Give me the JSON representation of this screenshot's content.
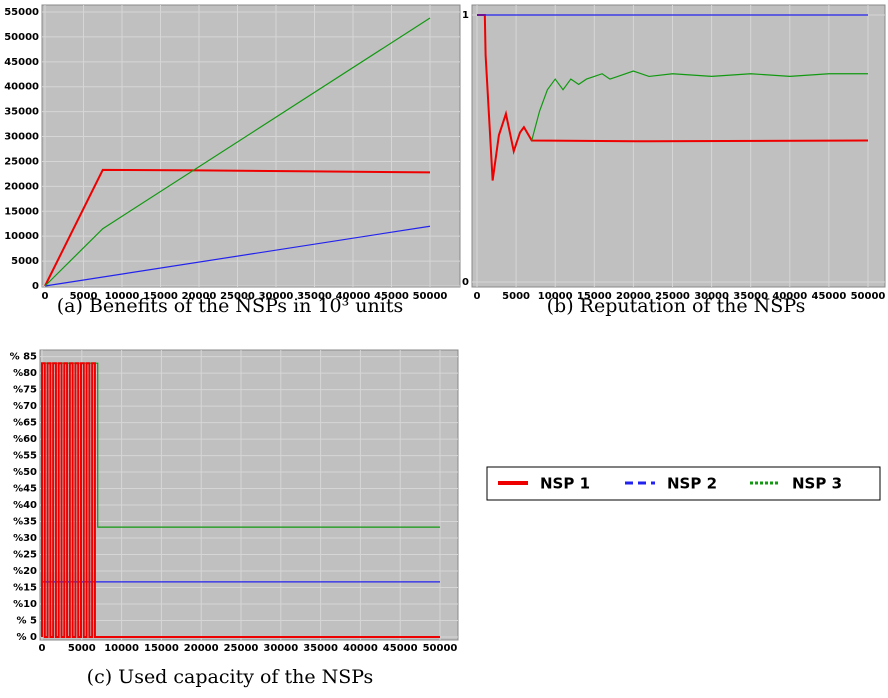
{
  "chart_data": [
    {
      "type": "line",
      "caption": "(a) Benefits of the NSPs in 10³ units",
      "xlim": [
        0,
        50000
      ],
      "xticks": [
        0,
        5000,
        10000,
        15000,
        20000,
        25000,
        30000,
        35000,
        40000,
        45000,
        50000
      ],
      "ylim": [
        0,
        55000
      ],
      "yticks": [
        0,
        5000,
        10000,
        15000,
        20000,
        25000,
        30000,
        35000,
        40000,
        45000,
        50000,
        55000
      ],
      "grid": true,
      "series": [
        {
          "color": "#ee0000",
          "x": [
            0,
            7500,
            20000,
            35000,
            50000
          ],
          "values": [
            0,
            23300,
            23200,
            23000,
            22800
          ]
        },
        {
          "color": "#2222ee",
          "x": [
            0,
            50000
          ],
          "values": [
            0,
            12000
          ]
        },
        {
          "color": "#119911",
          "x": [
            0,
            7500,
            50000
          ],
          "values": [
            0,
            11500,
            53800
          ]
        }
      ]
    },
    {
      "type": "line",
      "caption": "(b) Reputation of the NSPs",
      "xlim": [
        0,
        50000
      ],
      "xticks": [
        0,
        5000,
        10000,
        15000,
        20000,
        25000,
        30000,
        35000,
        40000,
        45000,
        50000
      ],
      "ylim": [
        0,
        1
      ],
      "yticks": [
        0,
        1
      ],
      "grid": true,
      "series": [
        {
          "color": "#ee0000",
          "x": [
            0,
            1000,
            1100,
            2000,
            2800,
            3700,
            4700,
            5500,
            6000,
            7000,
            22000,
            50000
          ],
          "values": [
            1,
            1,
            0.85,
            0.38,
            0.55,
            0.63,
            0.49,
            0.56,
            0.58,
            0.53,
            0.527,
            0.53
          ]
        },
        {
          "color": "#2222ee",
          "x": [
            0,
            50000
          ],
          "values": [
            1,
            1
          ]
        },
        {
          "color": "#119911",
          "x": [
            7000,
            8000,
            9000,
            10000,
            11000,
            12000,
            13000,
            14000,
            15000,
            16000,
            17000,
            18000,
            20000,
            22000,
            25000,
            30000,
            35000,
            40000,
            45000,
            50000
          ],
          "values": [
            0.53,
            0.64,
            0.72,
            0.76,
            0.72,
            0.76,
            0.74,
            0.76,
            0.77,
            0.78,
            0.76,
            0.77,
            0.79,
            0.77,
            0.78,
            0.77,
            0.78,
            0.77,
            0.78,
            0.78
          ]
        }
      ]
    },
    {
      "type": "line",
      "caption": "(c) Used capacity of the NSPs",
      "xlim": [
        0,
        50000
      ],
      "xticks": [
        0,
        5000,
        10000,
        15000,
        20000,
        25000,
        30000,
        35000,
        40000,
        45000,
        50000
      ],
      "ylim": [
        0,
        87
      ],
      "yticks": [
        {
          "value": 0,
          "label": "% 0"
        },
        {
          "value": 5,
          "label": "% 5"
        },
        {
          "value": 10,
          "label": "%10"
        },
        {
          "value": 15,
          "label": "%15"
        },
        {
          "value": 20,
          "label": "%20"
        },
        {
          "value": 25,
          "label": "%25"
        },
        {
          "value": 30,
          "label": "%30"
        },
        {
          "value": 35,
          "label": "%35"
        },
        {
          "value": 40,
          "label": "%40"
        },
        {
          "value": 45,
          "label": "%45"
        },
        {
          "value": 50,
          "label": "%50"
        },
        {
          "value": 55,
          "label": "%55"
        },
        {
          "value": 60,
          "label": "%60"
        },
        {
          "value": 65,
          "label": "%65"
        },
        {
          "value": 70,
          "label": "%70"
        },
        {
          "value": 75,
          "label": "%75"
        },
        {
          "value": 80,
          "label": "%80"
        },
        {
          "value": 85,
          "label": "% 85"
        }
      ],
      "grid": true,
      "series": [
        {
          "color": "#119911",
          "x": [
            0,
            0,
            7000,
            7000,
            50000
          ],
          "values": [
            0,
            83,
            83,
            33.3,
            33.3
          ]
        },
        {
          "color": "#2222ee",
          "x": [
            0,
            50000
          ],
          "values": [
            16.7,
            16.7
          ]
        },
        {
          "color": "#ee0000",
          "x": [
            0,
            0,
            350,
            350,
            700,
            700,
            1050,
            1050,
            1400,
            1400,
            1750,
            1750,
            2100,
            2100,
            2450,
            2450,
            2800,
            2800,
            3150,
            3150,
            3500,
            3500,
            3850,
            3850,
            4200,
            4200,
            4550,
            4550,
            4900,
            4900,
            5250,
            5250,
            5600,
            5600,
            5950,
            5950,
            6300,
            6300,
            6650,
            6650,
            7000,
            50000
          ],
          "values": [
            0,
            83,
            83,
            0,
            0,
            83,
            83,
            0,
            0,
            83,
            83,
            0,
            0,
            83,
            83,
            0,
            0,
            83,
            83,
            0,
            0,
            83,
            83,
            0,
            0,
            83,
            83,
            0,
            0,
            83,
            83,
            0,
            0,
            83,
            83,
            0,
            0,
            83,
            83,
            0,
            0,
            0
          ]
        }
      ]
    }
  ],
  "legend": {
    "items": [
      {
        "name": "NSP 1",
        "color": "#ee0000",
        "style": "solid"
      },
      {
        "name": "NSP 2",
        "color": "#2222ee",
        "style": "dashed"
      },
      {
        "name": "NSP 3",
        "color": "#119911",
        "style": "dotted"
      }
    ]
  }
}
